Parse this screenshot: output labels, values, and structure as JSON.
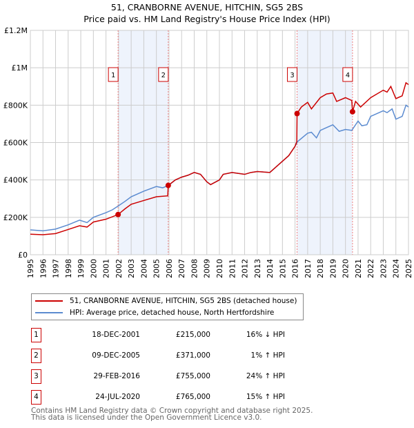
{
  "chart_data": {
    "type": "line",
    "title": "51, CRANBORNE AVENUE, HITCHIN, SG5 2BS",
    "subtitle": "Price paid vs. HM Land Registry's House Price Index (HPI)",
    "xlim": [
      1995,
      2025
    ],
    "ylim": [
      0,
      1200000
    ],
    "x_ticks": [
      "1995",
      "1996",
      "1997",
      "1998",
      "1999",
      "2000",
      "2001",
      "2002",
      "2003",
      "2004",
      "2005",
      "2006",
      "2007",
      "2008",
      "2009",
      "2010",
      "2011",
      "2012",
      "2013",
      "2014",
      "2015",
      "2016",
      "2017",
      "2018",
      "2019",
      "2020",
      "2021",
      "2022",
      "2023",
      "2024",
      "2025"
    ],
    "y_ticks": [
      {
        "v": 0,
        "label": "£0"
      },
      {
        "v": 200000,
        "label": "£200K"
      },
      {
        "v": 400000,
        "label": "£400K"
      },
      {
        "v": 600000,
        "label": "£600K"
      },
      {
        "v": 800000,
        "label": "£800K"
      },
      {
        "v": 1000000,
        "label": "£1M"
      },
      {
        "v": 1200000,
        "label": "£1.2M"
      }
    ],
    "grid": true,
    "series": [
      {
        "name": "51, CRANBORNE AVENUE, HITCHIN, SG5 2BS (detached house)",
        "color": "#cc0000",
        "x": [
          1995,
          1996,
          1997,
          1998,
          1998.9,
          1999.5,
          2000,
          2001,
          2001.96,
          2002.5,
          2003,
          2004,
          2005,
          2005.9,
          2005.94,
          2006.5,
          2007,
          2007.5,
          2008,
          2008.5,
          2009,
          2009.3,
          2010,
          2010.3,
          2011,
          2012,
          2012.5,
          2013,
          2014,
          2014.5,
          2015,
          2015.5,
          2016,
          2016.14,
          2016.16,
          2016.5,
          2017,
          2017.3,
          2018,
          2018.5,
          2019,
          2019.3,
          2020,
          2020.5,
          2020.56,
          2020.8,
          2021.2,
          2022,
          2023,
          2023.3,
          2023.6,
          2024,
          2024.5,
          2024.8,
          2025
        ],
        "y": [
          110000,
          107000,
          113000,
          135000,
          155000,
          148000,
          175000,
          190000,
          215000,
          245000,
          270000,
          290000,
          310000,
          315000,
          371000,
          400000,
          415000,
          425000,
          440000,
          430000,
          390000,
          375000,
          400000,
          430000,
          440000,
          430000,
          440000,
          445000,
          440000,
          470000,
          500000,
          530000,
          580000,
          605000,
          755000,
          790000,
          815000,
          780000,
          840000,
          860000,
          865000,
          820000,
          840000,
          825000,
          765000,
          820000,
          790000,
          840000,
          880000,
          870000,
          900000,
          835000,
          850000,
          920000,
          910000
        ]
      },
      {
        "name": "HPI: Average price, detached house, North Hertfordshire",
        "color": "#5b8bd0",
        "x": [
          1995,
          1996,
          1997,
          1998,
          1998.9,
          1999.5,
          2000,
          2001,
          2001.5,
          2002,
          2002.5,
          2003,
          2004,
          2005,
          2005.5,
          2006,
          2006.5,
          2007,
          2007.5,
          2008,
          2008.5,
          2009,
          2009.3,
          2010,
          2010.3,
          2011,
          2012,
          2012.5,
          2013,
          2014,
          2014.5,
          2015,
          2015.5,
          2016,
          2016.2,
          2017,
          2017.3,
          2017.7,
          2018,
          2018.5,
          2019,
          2019.5,
          2020,
          2020.5,
          2021,
          2021.3,
          2021.7,
          2022,
          2023,
          2023.3,
          2023.7,
          2024,
          2024.5,
          2024.8,
          2025
        ],
        "y": [
          133000,
          128000,
          137000,
          160000,
          185000,
          172000,
          200000,
          225000,
          240000,
          262000,
          285000,
          310000,
          340000,
          365000,
          358000,
          372000,
          400000,
          415000,
          425000,
          440000,
          430000,
          390000,
          375000,
          400000,
          430000,
          440000,
          430000,
          440000,
          445000,
          440000,
          470000,
          500000,
          530000,
          580000,
          605000,
          650000,
          655000,
          625000,
          665000,
          680000,
          695000,
          660000,
          670000,
          665000,
          715000,
          690000,
          695000,
          740000,
          770000,
          760000,
          780000,
          725000,
          740000,
          800000,
          790000
        ]
      }
    ],
    "sales": [
      {
        "n": "1",
        "date": "18-DEC-2001",
        "price": "£215,000",
        "hpi": "16% ↓ HPI",
        "x": 2001.96,
        "y": 215000
      },
      {
        "n": "2",
        "date": "09-DEC-2005",
        "price": "£371,000",
        "hpi": "1% ↑ HPI",
        "x": 2005.94,
        "y": 371000
      },
      {
        "n": "3",
        "date": "29-FEB-2016",
        "price": "£755,000",
        "hpi": "24% ↑ HPI",
        "x": 2016.16,
        "y": 755000
      },
      {
        "n": "4",
        "date": "24-JUL-2020",
        "price": "£765,000",
        "hpi": "15% ↑ HPI",
        "x": 2020.56,
        "y": 765000
      }
    ],
    "shaded_ranges": [
      [
        2001.96,
        2005.94
      ],
      [
        2016.16,
        2020.56
      ]
    ]
  },
  "footer": [
    "Contains HM Land Registry data © Crown copyright and database right 2025.",
    "This data is licensed under the Open Government Licence v3.0."
  ]
}
